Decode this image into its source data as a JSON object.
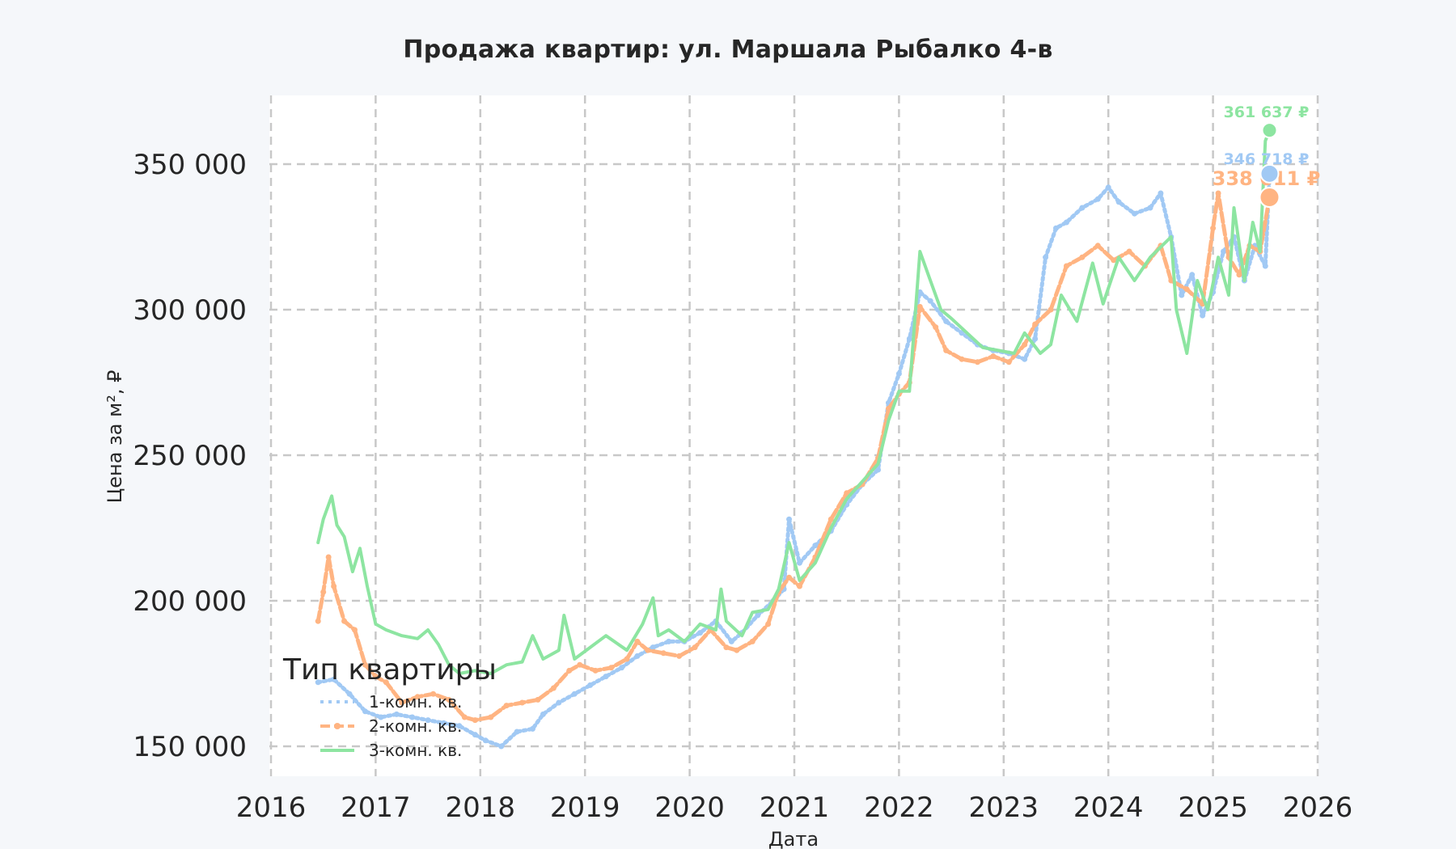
{
  "title": "Продажа квартир: ул. Маршала Рыбалко 4-в",
  "colors": {
    "one_room": "#a1c9f4",
    "two_room": "#ffb482",
    "three_room": "#8de5a1",
    "grid": "#c8c8c8",
    "plot_bg": "#ffffff",
    "page_bg": "#f5f7fa",
    "text": "#262626"
  },
  "chart_data": {
    "type": "line",
    "title": "Продажа квартир: ул. Маршала Рыбалко 4-в",
    "xlabel": "Дата",
    "ylabel": "Цена за м², ₽",
    "xlim": [
      2016,
      2026
    ],
    "ylim": [
      140000,
      372000
    ],
    "x_ticks": [
      "2016",
      "2017",
      "2018",
      "2019",
      "2020",
      "2021",
      "2022",
      "2023",
      "2024",
      "2025",
      "2026"
    ],
    "y_ticks": [
      {
        "value": 150000,
        "label": "150 000"
      },
      {
        "value": 200000,
        "label": "200 000"
      },
      {
        "value": 250000,
        "label": "250 000"
      },
      {
        "value": 300000,
        "label": "300 000"
      },
      {
        "value": 350000,
        "label": "350 000"
      }
    ],
    "grid": true,
    "legend": {
      "title": "Тип квартиры",
      "position": "lower left",
      "entries": [
        "1-комн. кв.",
        "2-комн. кв.",
        "3-комн. кв."
      ]
    },
    "series": [
      {
        "name": "1-комн. кв.",
        "style": "dotted",
        "x": [
          2016.45,
          2016.6,
          2016.75,
          2016.9,
          2017.05,
          2017.2,
          2017.35,
          2017.5,
          2017.65,
          2017.8,
          2017.95,
          2018.05,
          2018.2,
          2018.35,
          2018.5,
          2018.6,
          2018.75,
          2018.9,
          2019.05,
          2019.2,
          2019.35,
          2019.5,
          2019.65,
          2019.8,
          2019.95,
          2020.1,
          2020.25,
          2020.4,
          2020.5,
          2020.65,
          2020.8,
          2020.9,
          2020.95,
          2021.05,
          2021.2,
          2021.35,
          2021.5,
          2021.65,
          2021.8,
          2021.9,
          2022.0,
          2022.1,
          2022.2,
          2022.3,
          2022.45,
          2022.6,
          2022.75,
          2022.9,
          2023.05,
          2023.2,
          2023.3,
          2023.4,
          2023.5,
          2023.6,
          2023.75,
          2023.9,
          2024.0,
          2024.1,
          2024.25,
          2024.4,
          2024.5,
          2024.6,
          2024.7,
          2024.8,
          2024.9,
          2025.0,
          2025.1,
          2025.2,
          2025.3,
          2025.4,
          2025.5,
          2025.54
        ],
        "y": [
          172000,
          173000,
          168000,
          162000,
          160000,
          161000,
          160000,
          159000,
          158000,
          157000,
          154000,
          152000,
          150000,
          155000,
          156000,
          161000,
          165000,
          168000,
          171000,
          174000,
          177000,
          181000,
          184000,
          186000,
          186000,
          189000,
          193000,
          186000,
          189000,
          195000,
          200000,
          204000,
          228000,
          213000,
          219000,
          224000,
          233000,
          240000,
          245000,
          268000,
          278000,
          290000,
          306000,
          303000,
          296000,
          292000,
          288000,
          286000,
          285000,
          283000,
          290000,
          318000,
          328000,
          330000,
          335000,
          338000,
          342000,
          337000,
          333000,
          335000,
          340000,
          325000,
          305000,
          312000,
          298000,
          306000,
          320000,
          325000,
          310000,
          322000,
          315000,
          346718
        ]
      },
      {
        "name": "2-комн. кв.",
        "style": "dashed-marker",
        "x": [
          2016.45,
          2016.5,
          2016.55,
          2016.6,
          2016.7,
          2016.8,
          2016.9,
          2017.0,
          2017.1,
          2017.25,
          2017.4,
          2017.55,
          2017.7,
          2017.85,
          2017.95,
          2018.1,
          2018.25,
          2018.4,
          2018.55,
          2018.7,
          2018.85,
          2018.95,
          2019.1,
          2019.25,
          2019.4,
          2019.5,
          2019.6,
          2019.75,
          2019.9,
          2020.05,
          2020.2,
          2020.35,
          2020.45,
          2020.6,
          2020.75,
          2020.85,
          2020.95,
          2021.05,
          2021.2,
          2021.35,
          2021.5,
          2021.65,
          2021.8,
          2021.9,
          2022.0,
          2022.1,
          2022.2,
          2022.35,
          2022.45,
          2022.6,
          2022.75,
          2022.9,
          2023.05,
          2023.2,
          2023.3,
          2023.45,
          2023.6,
          2023.75,
          2023.9,
          2024.05,
          2024.2,
          2024.35,
          2024.5,
          2024.6,
          2024.75,
          2024.9,
          2025.0,
          2025.05,
          2025.15,
          2025.25,
          2025.35,
          2025.45,
          2025.54
        ],
        "y": [
          193000,
          203000,
          215000,
          205000,
          193000,
          190000,
          178000,
          174000,
          172000,
          165000,
          167000,
          168000,
          166000,
          160000,
          159000,
          160000,
          164000,
          165000,
          166000,
          170000,
          176000,
          178000,
          176000,
          177000,
          180000,
          186000,
          183000,
          182000,
          181000,
          184000,
          190000,
          184000,
          183000,
          186000,
          192000,
          203000,
          208000,
          205000,
          215000,
          228000,
          237000,
          240000,
          249000,
          266000,
          271000,
          275000,
          301000,
          294000,
          286000,
          283000,
          282000,
          284000,
          282000,
          288000,
          295000,
          300000,
          315000,
          318000,
          322000,
          317000,
          320000,
          315000,
          322000,
          310000,
          307000,
          302000,
          328000,
          340000,
          318000,
          312000,
          322000,
          320000,
          338611
        ]
      },
      {
        "name": "3-комн. кв.",
        "style": "solid",
        "x": [
          2016.45,
          2016.5,
          2016.58,
          2016.63,
          2016.7,
          2016.78,
          2016.85,
          2016.92,
          2017.0,
          2017.1,
          2017.25,
          2017.4,
          2017.5,
          2017.6,
          2017.7,
          2017.8,
          2017.95,
          2018.1,
          2018.25,
          2018.4,
          2018.5,
          2018.6,
          2018.75,
          2018.8,
          2018.9,
          2019.05,
          2019.2,
          2019.4,
          2019.55,
          2019.65,
          2019.7,
          2019.8,
          2019.95,
          2020.1,
          2020.25,
          2020.3,
          2020.35,
          2020.5,
          2020.6,
          2020.75,
          2020.85,
          2020.95,
          2021.05,
          2021.2,
          2021.35,
          2021.5,
          2021.65,
          2021.8,
          2021.9,
          2022.0,
          2022.1,
          2022.2,
          2022.3,
          2022.4,
          2022.5,
          2022.65,
          2022.8,
          2022.95,
          2023.1,
          2023.2,
          2023.35,
          2023.45,
          2023.55,
          2023.7,
          2023.85,
          2023.95,
          2024.1,
          2024.25,
          2024.4,
          2024.6,
          2024.65,
          2024.75,
          2024.85,
          2024.95,
          2025.05,
          2025.15,
          2025.2,
          2025.3,
          2025.38,
          2025.45,
          2025.5,
          2025.54
        ],
        "y": [
          220000,
          228000,
          236000,
          226000,
          222000,
          210000,
          218000,
          205000,
          192000,
          190000,
          188000,
          187000,
          190000,
          185000,
          178000,
          175000,
          176000,
          175000,
          178000,
          179000,
          188000,
          180000,
          183000,
          195000,
          180000,
          184000,
          188000,
          183000,
          192000,
          201000,
          188000,
          190000,
          186000,
          192000,
          190000,
          204000,
          193000,
          188000,
          196000,
          197000,
          204000,
          220000,
          207000,
          213000,
          225000,
          235000,
          241000,
          247000,
          262000,
          272000,
          272000,
          320000,
          310000,
          300000,
          297000,
          292000,
          287000,
          286000,
          285000,
          292000,
          285000,
          288000,
          305000,
          296000,
          316000,
          302000,
          318000,
          310000,
          318000,
          325000,
          300000,
          285000,
          310000,
          300000,
          318000,
          305000,
          335000,
          310000,
          330000,
          320000,
          358000,
          361637
        ]
      }
    ],
    "annotations": [
      {
        "series": "3-комн. кв.",
        "x": 2025.54,
        "y": 361637,
        "label": "361 637 ₽"
      },
      {
        "series": "1-комн. кв.",
        "x": 2025.54,
        "y": 346718,
        "label": "346 718 ₽"
      },
      {
        "series": "2-комн. кв.",
        "x": 2025.54,
        "y": 338611,
        "label": "338 611 ₽"
      }
    ]
  }
}
